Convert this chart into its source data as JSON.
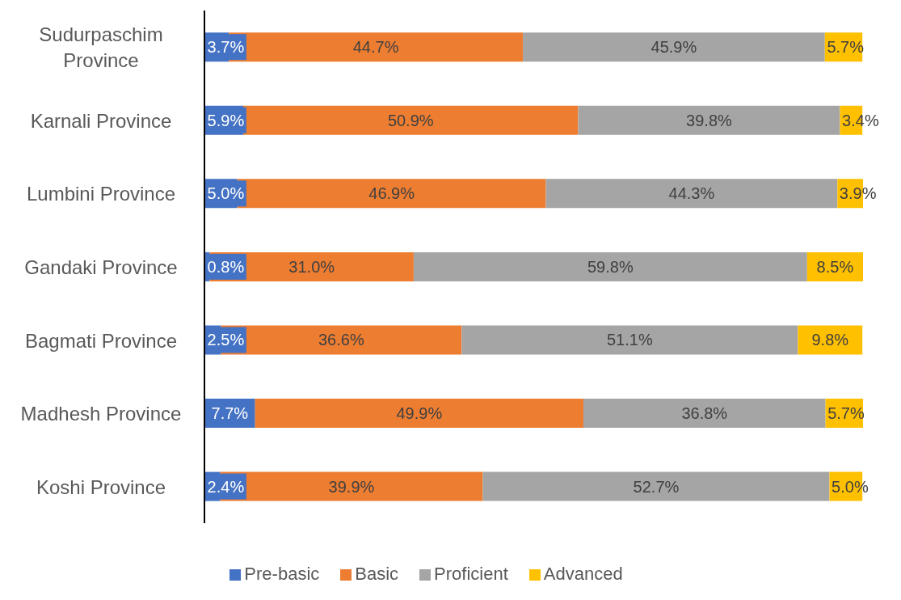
{
  "chart_data": {
    "type": "bar",
    "orientation": "horizontal",
    "stacked": true,
    "legend": "bottom",
    "grid": false,
    "categories": [
      "Sudurpaschim Province",
      "Karnali Province",
      "Lumbini Province",
      "Gandaki Province",
      "Bagmati Province",
      "Madhesh Province",
      "Koshi Province"
    ],
    "series": [
      {
        "name": "Pre-basic",
        "color": "#4472c4",
        "values": [
          3.7,
          5.9,
          5.0,
          0.8,
          2.5,
          7.7,
          2.4
        ],
        "value_labels": [
          "3.7%",
          "5.9%",
          "5.0%",
          "0.8%",
          "2.5%",
          "7.7%",
          "2.4%"
        ]
      },
      {
        "name": "Basic",
        "color": "#ed7d31",
        "values": [
          44.7,
          50.9,
          46.9,
          31.0,
          36.6,
          49.9,
          39.9
        ],
        "value_labels": [
          "44.7%",
          "50.9%",
          "46.9%",
          "31.0%",
          "36.6%",
          "49.9%",
          "39.9%"
        ]
      },
      {
        "name": "Proficient",
        "color": "#a5a5a5",
        "values": [
          45.9,
          39.8,
          44.3,
          59.8,
          51.1,
          36.8,
          52.7
        ],
        "value_labels": [
          "45.9%",
          "39.8%",
          "44.3%",
          "59.8%",
          "51.1%",
          "36.8%",
          "52.7%"
        ]
      },
      {
        "name": "Advanced",
        "color": "#ffc000",
        "values": [
          5.7,
          3.4,
          3.9,
          8.5,
          9.8,
          5.7,
          5.0
        ],
        "value_labels": [
          "5.7%",
          "3.4%",
          "3.9%",
          "8.5%",
          "9.8%",
          "5.7%",
          "5.0%"
        ]
      }
    ]
  }
}
